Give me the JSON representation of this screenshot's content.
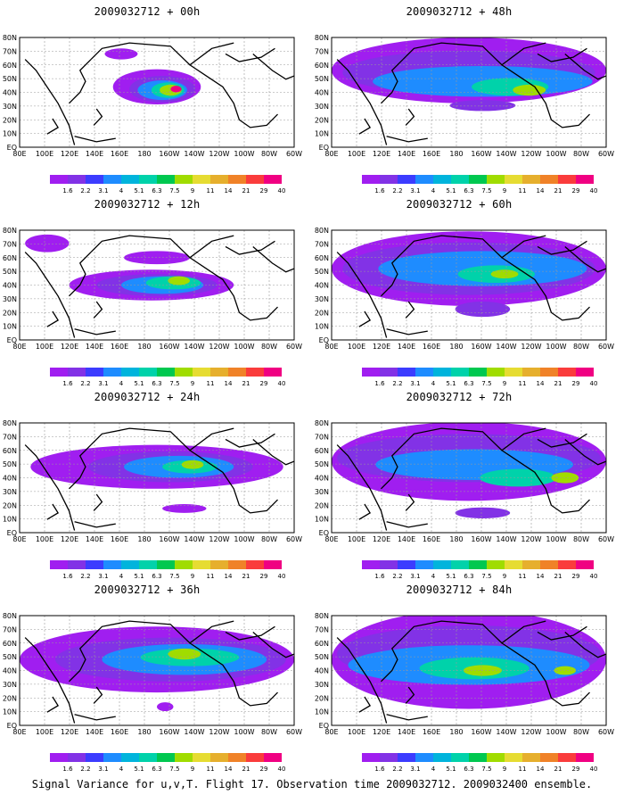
{
  "panels": [
    {
      "title": "2009032712 + 00h"
    },
    {
      "title": "2009032712 + 48h"
    },
    {
      "title": "2009032712 + 12h"
    },
    {
      "title": "2009032712 + 60h"
    },
    {
      "title": "2009032712 + 24h"
    },
    {
      "title": "2009032712 + 72h"
    },
    {
      "title": "2009032712 + 36h"
    },
    {
      "title": "2009032712 + 84h"
    }
  ],
  "lat_labels": [
    "80N",
    "70N",
    "60N",
    "50N",
    "40N",
    "30N",
    "20N",
    "10N",
    "EQ"
  ],
  "lon_labels": [
    "80E",
    "100E",
    "120E",
    "140E",
    "160E",
    "180",
    "160W",
    "140W",
    "120W",
    "100W",
    "80W",
    "60W"
  ],
  "colorbar": {
    "labels": [
      "1.6",
      "2.2",
      "3.1",
      "4",
      "5.1",
      "6.3",
      "7.5",
      "9",
      "11",
      "14",
      "21",
      "29",
      "40"
    ],
    "colors": [
      "#a01ef0",
      "#8232e6",
      "#3c3cff",
      "#1e8cff",
      "#00b4dc",
      "#00d2aa",
      "#00c850",
      "#a0dc00",
      "#e6dc32",
      "#e6af2d",
      "#f08228",
      "#fa3c3c",
      "#f00082"
    ]
  },
  "caption": "Signal Variance for u,v,T. Flight 17. Observation time 2009032712. 2009032400 ensemble."
}
